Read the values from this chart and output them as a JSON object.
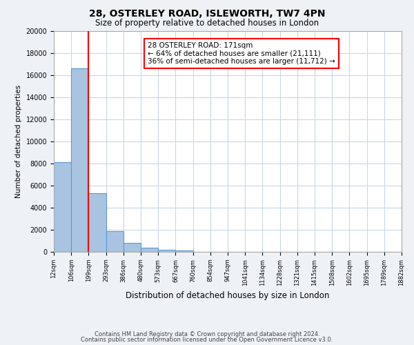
{
  "title": "28, OSTERLEY ROAD, ISLEWORTH, TW7 4PN",
  "subtitle": "Size of property relative to detached houses in London",
  "xlabel": "Distribution of detached houses by size in London",
  "ylabel": "Number of detached properties",
  "bin_labels": [
    "12sqm",
    "106sqm",
    "199sqm",
    "293sqm",
    "386sqm",
    "480sqm",
    "573sqm",
    "667sqm",
    "760sqm",
    "854sqm",
    "947sqm",
    "1041sqm",
    "1134sqm",
    "1228sqm",
    "1321sqm",
    "1415sqm",
    "1508sqm",
    "1602sqm",
    "1695sqm",
    "1789sqm",
    "1882sqm"
  ],
  "bar_values": [
    8100,
    16600,
    5300,
    1850,
    800,
    350,
    200,
    150,
    0,
    0,
    0,
    0,
    0,
    0,
    0,
    0,
    0,
    0,
    0,
    0
  ],
  "ylim": [
    0,
    20000
  ],
  "yticks": [
    0,
    2000,
    4000,
    6000,
    8000,
    10000,
    12000,
    14000,
    16000,
    18000,
    20000
  ],
  "bar_color": "#a8c4e0",
  "bar_edge_color": "#5b9bd5",
  "bar_edge_width": 0.8,
  "vline_x": 2.0,
  "vline_color": "red",
  "annotation_title": "28 OSTERLEY ROAD: 171sqm",
  "annotation_line1": "← 64% of detached houses are smaller (21,111)",
  "annotation_line2": "36% of semi-detached houses are larger (11,712) →",
  "footer_line1": "Contains HM Land Registry data © Crown copyright and database right 2024.",
  "footer_line2": "Contains public sector information licensed under the Open Government Licence v3.0.",
  "bg_color": "#eef2f7",
  "plot_bg_color": "#ffffff",
  "grid_color": "#c8d8e8"
}
